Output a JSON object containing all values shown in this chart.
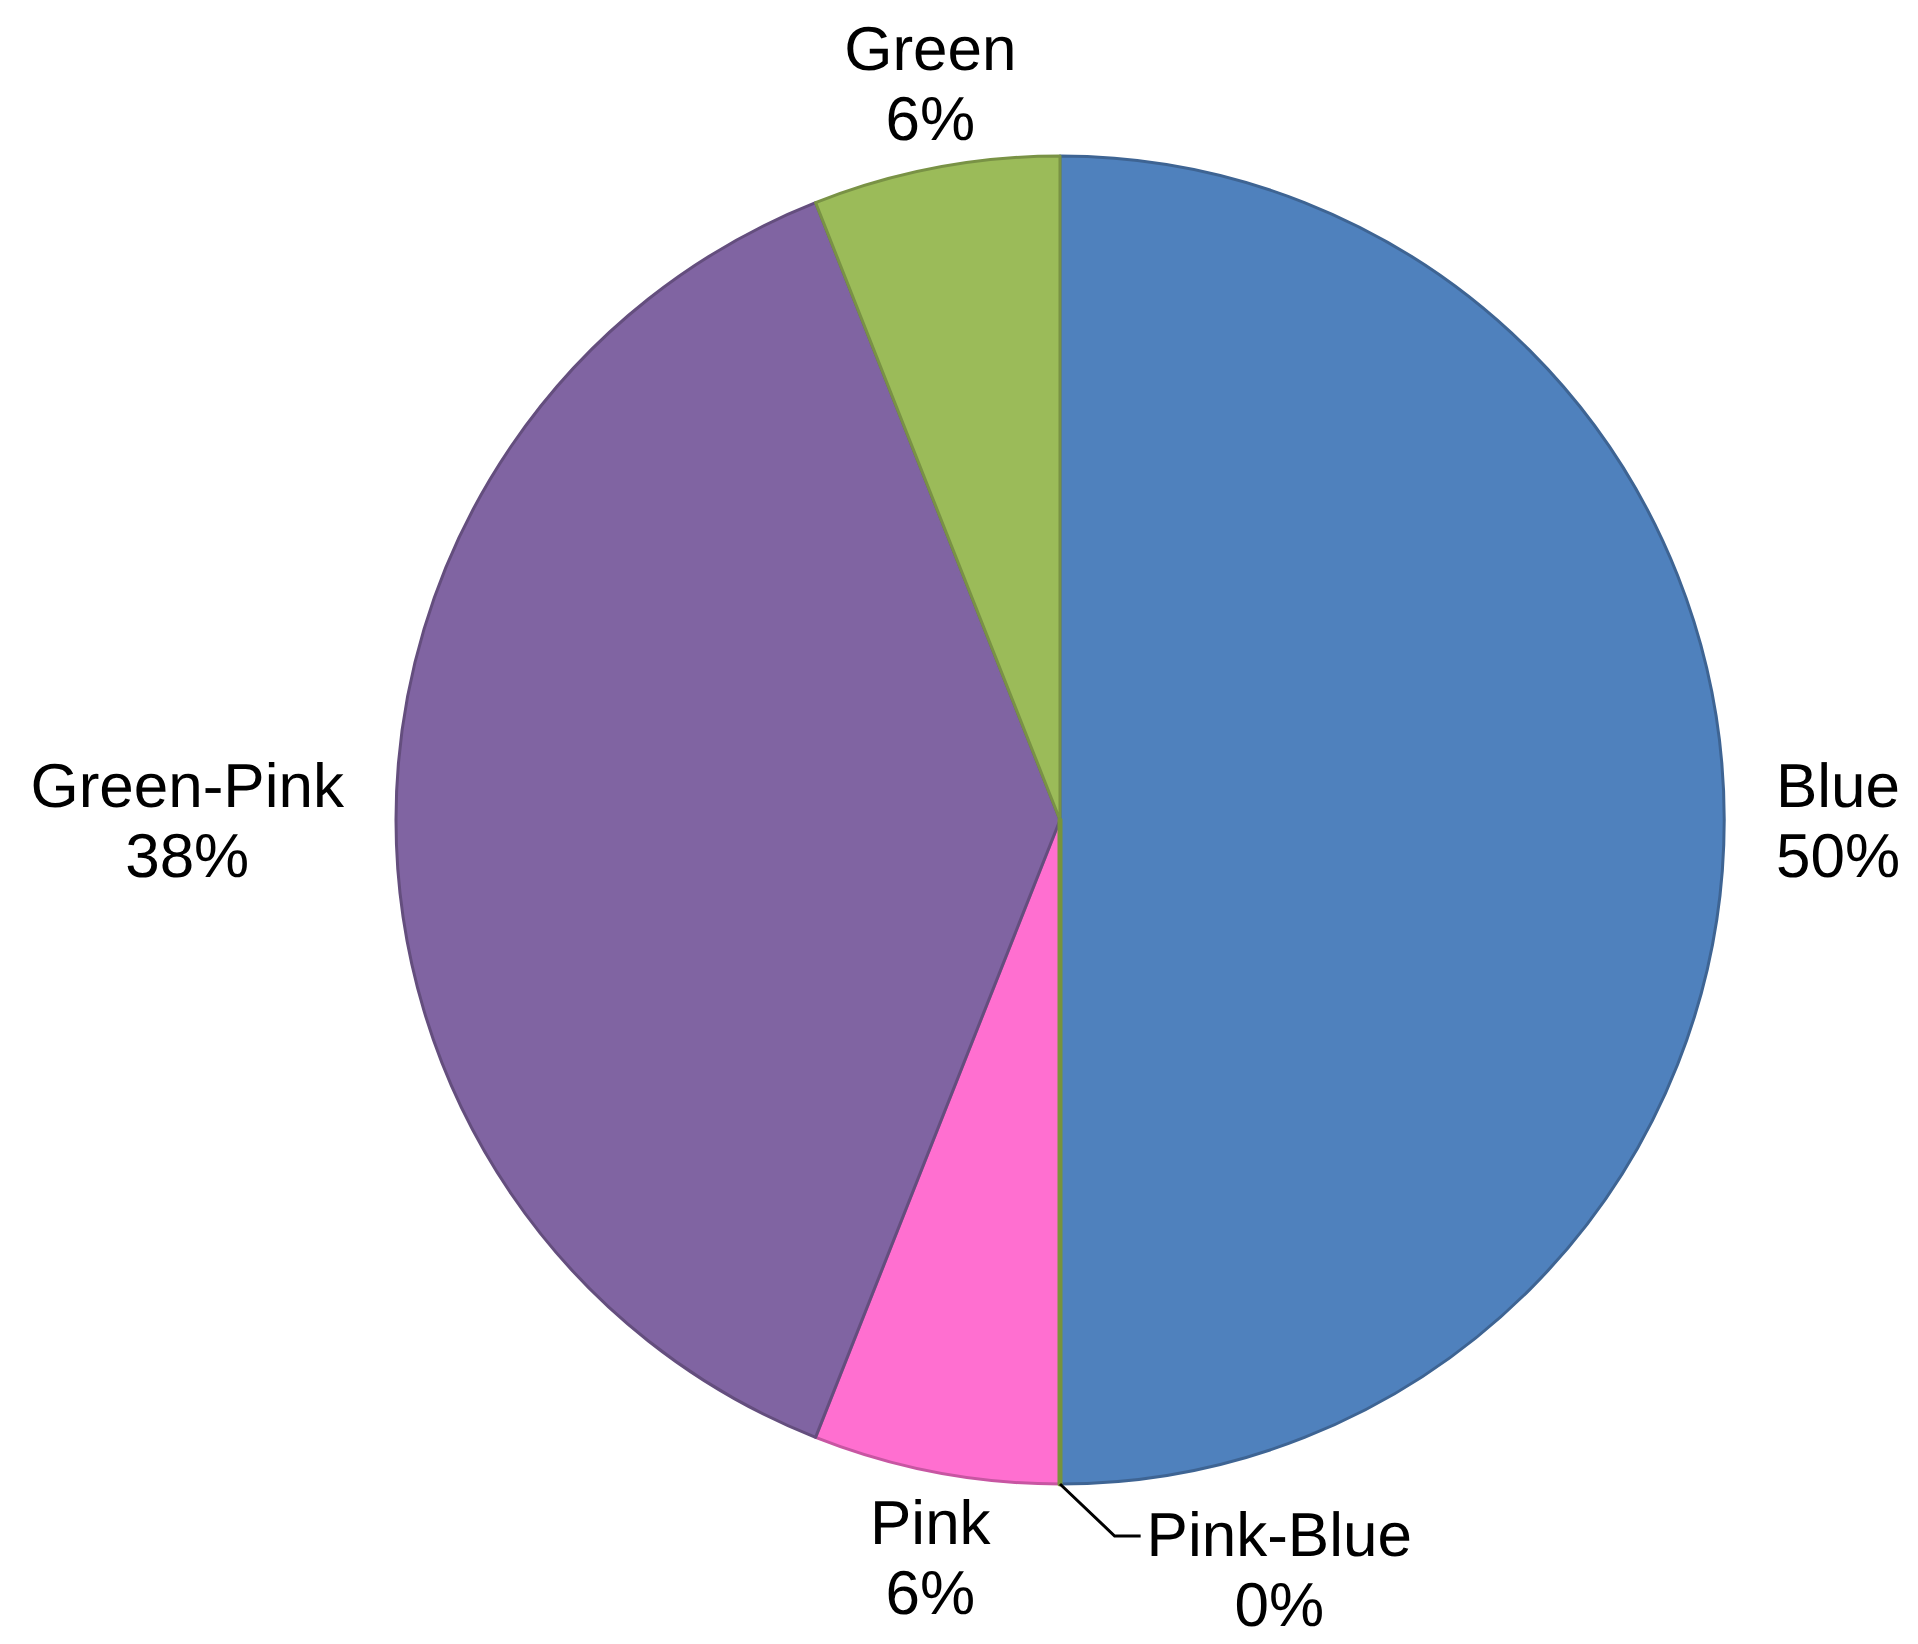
{
  "chart_data": {
    "type": "pie",
    "categories": [
      "Blue",
      "Pink-Blue",
      "Pink",
      "Green-Pink",
      "Green"
    ],
    "values": [
      50,
      0,
      6,
      38,
      6
    ],
    "colors": [
      "#4f81bd",
      "#77933c",
      "#ff6fd0",
      "#8064a2",
      "#9bbb59"
    ],
    "value_labels": [
      "50%",
      "0%",
      "6%",
      "38%",
      "6%"
    ]
  }
}
